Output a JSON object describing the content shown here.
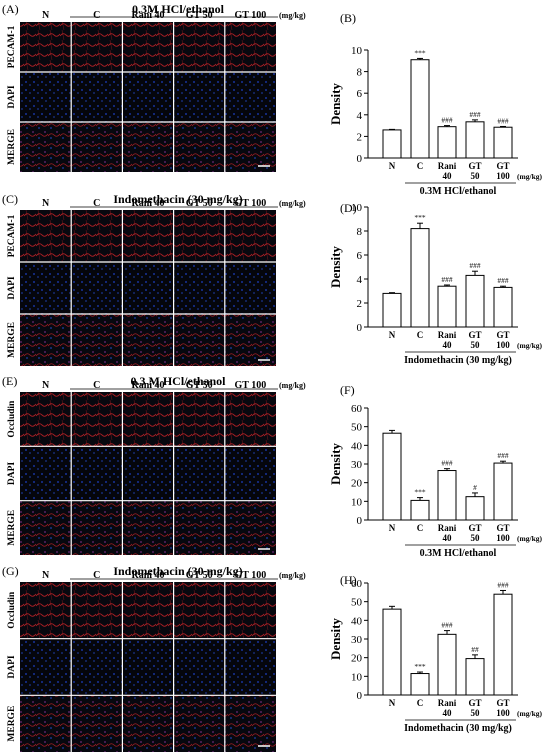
{
  "colors": {
    "panel_bg": "#07080f",
    "grid_line": "#ffffff",
    "red_stain": "#e0262b",
    "blue_stain": "#1f45d6",
    "merge_stain": "#c63a6a",
    "row_label_red": "#c00000",
    "row_label_blue": "#1f3fc0",
    "row_label_merge": "#a0208a",
    "bar_fill": "#ffffff",
    "bar_stroke": "#000000"
  },
  "panels": [
    {
      "letter": "(A)",
      "header": "0.3M HCl/ethanol",
      "columns": [
        "N",
        "C",
        "Rani 40",
        "GT 50",
        "GT 100"
      ],
      "unit": "(mg/kg)",
      "rows": [
        "PECAM-1",
        "DAPI",
        "MERGE"
      ],
      "stains": [
        "red",
        "blue",
        "merge"
      ]
    },
    {
      "letter": "(C)",
      "header": "Indomethacin (30 mg/kg)",
      "columns": [
        "N",
        "C",
        "Rani 40",
        "GT 50",
        "GT 100"
      ],
      "unit": "(mg/kg)",
      "rows": [
        "PECAM-1",
        "DAPI",
        "MERGE"
      ],
      "stains": [
        "red",
        "blue",
        "merge"
      ]
    },
    {
      "letter": "(E)",
      "header": "0.3 M HCl/ethanol",
      "columns": [
        "N",
        "C",
        "Rani 40",
        "GT 50",
        "GT 100"
      ],
      "unit": "(mg/kg)",
      "rows": [
        "Occludin",
        "DAPI",
        "MERGE"
      ],
      "stains": [
        "red",
        "blue",
        "merge"
      ]
    },
    {
      "letter": "(G)",
      "header": "Indomethacin (30 mg/kg)",
      "columns": [
        "N",
        "C",
        "Rani 40",
        "GT 50",
        "GT 100"
      ],
      "unit": "(mg/kg)",
      "rows": [
        "Occludin",
        "DAPI",
        "MERGE"
      ],
      "stains": [
        "red",
        "blue",
        "merge"
      ]
    }
  ],
  "chart_data": [
    {
      "letter": "(B)",
      "type": "bar",
      "ylabel": "Density",
      "ylim": [
        0,
        10
      ],
      "yticks": [
        0,
        2,
        4,
        6,
        8,
        10
      ],
      "cat_line1": [
        "N",
        "C",
        "Rani",
        "GT",
        "GT"
      ],
      "cat_line2": [
        "",
        "",
        "40",
        "50",
        "100"
      ],
      "values": [
        2.6,
        9.1,
        2.9,
        3.35,
        2.85
      ],
      "errors": [
        0.05,
        0.12,
        0.1,
        0.18,
        0.07
      ],
      "sig": [
        "",
        "***",
        "###",
        "###",
        "###"
      ],
      "unit": "(mg/kg)",
      "group": "0.3M  HCl/ethanol"
    },
    {
      "letter": "(D)",
      "type": "bar",
      "ylabel": "Density",
      "ylim": [
        0,
        10
      ],
      "yticks": [
        0,
        2,
        4,
        6,
        8,
        10
      ],
      "cat_line1": [
        "N",
        "C",
        "Rani",
        "GT",
        "GT"
      ],
      "cat_line2": [
        "",
        "",
        "40",
        "50",
        "100"
      ],
      "values": [
        2.8,
        8.2,
        3.4,
        4.3,
        3.3
      ],
      "errors": [
        0.06,
        0.45,
        0.1,
        0.35,
        0.1
      ],
      "sig": [
        "",
        "***",
        "###",
        "###",
        "###"
      ],
      "unit": "(mg/kg)",
      "group": "Indomethacin (30 mg/kg)"
    },
    {
      "letter": "(F)",
      "type": "bar",
      "ylabel": "Density",
      "ylim": [
        0,
        60
      ],
      "yticks": [
        0,
        10,
        20,
        30,
        40,
        50,
        60
      ],
      "cat_line1": [
        "N",
        "C",
        "Rani",
        "GT",
        "GT"
      ],
      "cat_line2": [
        "",
        "",
        "40",
        "50",
        "100"
      ],
      "values": [
        46.5,
        10.5,
        26.5,
        12.5,
        30.5
      ],
      "errors": [
        1.5,
        1.5,
        1.0,
        2.0,
        1.0
      ],
      "sig": [
        "",
        "***",
        "###",
        "#",
        "###"
      ],
      "unit": "(mg/kg)",
      "group": "0.3M  HCl/ethanol"
    },
    {
      "letter": "(H)",
      "type": "bar",
      "ylabel": "Density",
      "ylim": [
        0,
        60
      ],
      "yticks": [
        0,
        10,
        20,
        30,
        40,
        50,
        60
      ],
      "cat_line1": [
        "N",
        "C",
        "Rani",
        "GT",
        "GT"
      ],
      "cat_line2": [
        "",
        "",
        "40",
        "50",
        "100"
      ],
      "values": [
        46,
        11.5,
        32.5,
        19.5,
        54
      ],
      "errors": [
        1.5,
        0.8,
        2.0,
        2.0,
        2.0
      ],
      "sig": [
        "",
        "***",
        "###",
        "##",
        "###"
      ],
      "unit": "(mg/kg)",
      "group": "Indomethacin (30 mg/kg)"
    }
  ]
}
